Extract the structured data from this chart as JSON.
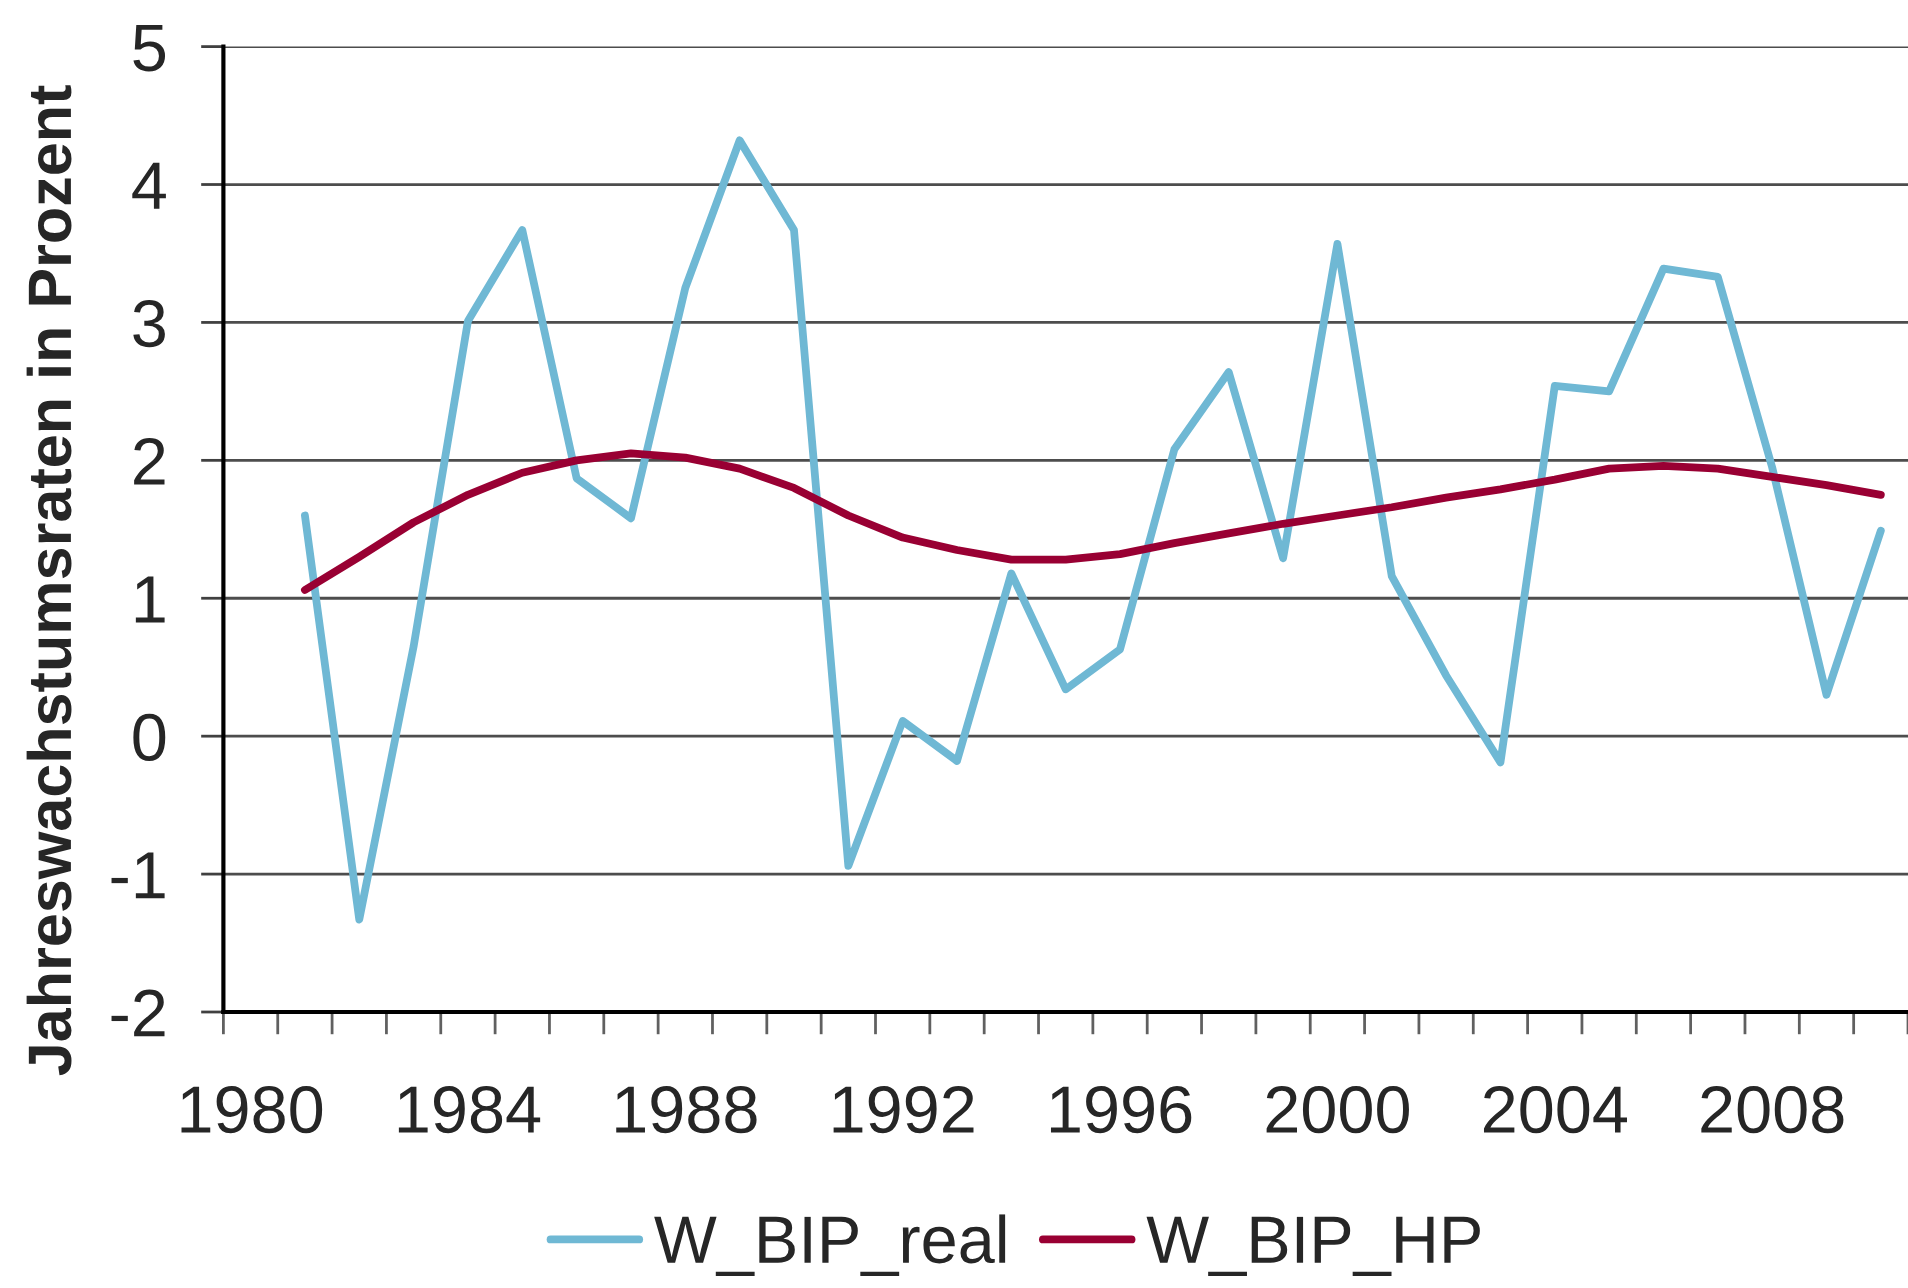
{
  "chart_data": {
    "type": "line",
    "ylabel": "Jahreswachstumsraten in Prozent",
    "categories": [
      "1980",
      null,
      null,
      null,
      "1984",
      null,
      null,
      null,
      "1988",
      null,
      null,
      null,
      "1992",
      null,
      null,
      null,
      "1996",
      null,
      null,
      null,
      "2000",
      null,
      null,
      null,
      "2004",
      null,
      null,
      null,
      "2008",
      null,
      null
    ],
    "series": [
      {
        "name": "W_BIP_real",
        "color": "#6fb8d4",
        "values": [
          null,
          1.6,
          -1.33,
          0.65,
          3.01,
          3.67,
          1.87,
          1.58,
          3.25,
          4.32,
          3.67,
          -0.94,
          0.11,
          -0.18,
          1.18,
          0.34,
          0.63,
          2.08,
          2.64,
          1.29,
          3.57,
          1.16,
          0.44,
          -0.19,
          2.54,
          2.5,
          3.39,
          3.33,
          1.95,
          0.3,
          1.49
        ]
      },
      {
        "name": "W_BIP_HP",
        "color": "#990033",
        "values": [
          null,
          1.06,
          1.3,
          1.55,
          1.75,
          1.91,
          2.0,
          2.05,
          2.02,
          1.94,
          1.8,
          1.6,
          1.44,
          1.35,
          1.28,
          1.28,
          1.32,
          1.4,
          1.47,
          1.54,
          1.6,
          1.66,
          1.73,
          1.79,
          1.86,
          1.94,
          1.96,
          1.94,
          1.88,
          1.82,
          1.75
        ]
      }
    ],
    "ylim": [
      -2,
      5
    ],
    "yticks": [
      -2,
      -1,
      0,
      1,
      2,
      3,
      4,
      5
    ],
    "grid": "y",
    "legend": "bottom"
  }
}
